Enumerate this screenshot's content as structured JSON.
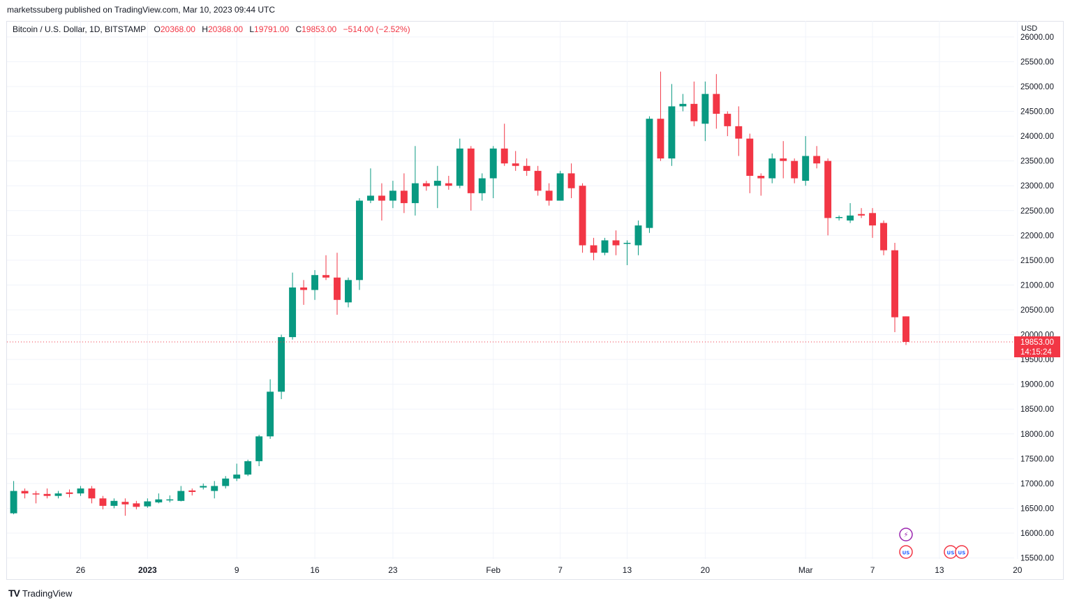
{
  "publisher_line": "marketssuberg published on TradingView.com, Mar 10, 2023 09:44 UTC",
  "legend": {
    "symbol": "Bitcoin / U.S. Dollar, 1D, BITSTAMP",
    "o_label": "O",
    "o_value": "20368.00",
    "h_label": "H",
    "h_value": "20368.00",
    "l_label": "L",
    "l_value": "19791.00",
    "c_label": "C",
    "c_value": "19853.00",
    "change": "−514.00 (−2.52%)"
  },
  "currency": "USD",
  "footer": {
    "logo": "TV",
    "brand": "TradingView"
  },
  "colors": {
    "up": "#089981",
    "down": "#f23645",
    "grid": "#f0f3fa",
    "text": "#131722",
    "price_tag": "#f23645"
  },
  "event_icons": [
    {
      "name": "flash-event-icon",
      "glyph": "⚡",
      "day_index": 80
    },
    {
      "name": "us-flag-event-icon",
      "glyph": "US",
      "day_index": 80
    },
    {
      "name": "us-flag-event-icon",
      "glyph": "US",
      "day_index": 84
    },
    {
      "name": "us-flag-event-icon",
      "glyph": "US",
      "day_index": 85
    }
  ],
  "chart_data": {
    "type": "candlestick",
    "title": "Bitcoin / U.S. Dollar, 1D, BITSTAMP",
    "ylim": [
      15480,
      26040
    ],
    "xlim": [
      -0.6,
      89.7
    ],
    "y_ticks": [
      15500,
      16000,
      16500,
      17000,
      17500,
      18000,
      18500,
      19000,
      19500,
      20000,
      20500,
      21000,
      21500,
      22000,
      22500,
      23000,
      23500,
      24000,
      24500,
      25000,
      25500,
      26000
    ],
    "y_tick_labels": [
      "15500.00",
      "16000.00",
      "16500.00",
      "17000.00",
      "17500.00",
      "18000.00",
      "18500.00",
      "19000.00",
      "19500.00",
      "20000.00",
      "20500.00",
      "21000.00",
      "21500.00",
      "22000.00",
      "22500.00",
      "23000.00",
      "23500.00",
      "24000.00",
      "24500.00",
      "25000.00",
      "25500.00",
      "26000.00"
    ],
    "x_ticks": [
      {
        "day": 6,
        "label": "26",
        "bold": false
      },
      {
        "day": 12,
        "label": "2023",
        "bold": true
      },
      {
        "day": 20,
        "label": "9",
        "bold": false
      },
      {
        "day": 27,
        "label": "16",
        "bold": false
      },
      {
        "day": 34,
        "label": "23",
        "bold": false
      },
      {
        "day": 43,
        "label": "Feb",
        "bold": false
      },
      {
        "day": 49,
        "label": "7",
        "bold": false
      },
      {
        "day": 55,
        "label": "13",
        "bold": false
      },
      {
        "day": 62,
        "label": "20",
        "bold": false
      },
      {
        "day": 71,
        "label": "Mar",
        "bold": false
      },
      {
        "day": 77,
        "label": "7",
        "bold": false
      },
      {
        "day": 83,
        "label": "13",
        "bold": false
      },
      {
        "day": 90,
        "label": "20",
        "bold": false
      }
    ],
    "last_price": 19853,
    "last_price_label": "19853.00",
    "countdown_label": "14:15:24",
    "candles": [
      [
        16400,
        16850,
        17050,
        16380
      ],
      [
        16850,
        16800,
        16900,
        16700
      ],
      [
        16800,
        16780,
        16850,
        16600
      ],
      [
        16790,
        16750,
        16900,
        16700
      ],
      [
        16750,
        16800,
        16850,
        16700
      ],
      [
        16820,
        16790,
        16880,
        16720
      ],
      [
        16800,
        16900,
        16950,
        16750
      ],
      [
        16900,
        16700,
        16950,
        16600
      ],
      [
        16700,
        16550,
        16750,
        16480
      ],
      [
        16550,
        16650,
        16700,
        16500
      ],
      [
        16630,
        16580,
        16700,
        16350
      ],
      [
        16600,
        16530,
        16650,
        16480
      ],
      [
        16540,
        16640,
        16700,
        16510
      ],
      [
        16620,
        16680,
        16800,
        16600
      ],
      [
        16670,
        16680,
        16760,
        16620
      ],
      [
        16650,
        16850,
        16950,
        16640
      ],
      [
        16860,
        16830,
        16900,
        16760
      ],
      [
        16920,
        16950,
        17000,
        16880
      ],
      [
        16850,
        16950,
        17050,
        16700
      ],
      [
        16950,
        17100,
        17150,
        16900
      ],
      [
        17100,
        17180,
        17400,
        17050
      ],
      [
        17180,
        17450,
        17480,
        17150
      ],
      [
        17450,
        17950,
        17980,
        17350
      ],
      [
        17950,
        18850,
        19100,
        17900
      ],
      [
        18850,
        19950,
        20000,
        18700
      ],
      [
        19950,
        20950,
        21250,
        19900
      ],
      [
        20950,
        20900,
        21100,
        20600
      ],
      [
        20900,
        21200,
        21300,
        20700
      ],
      [
        21200,
        21150,
        21600,
        21100
      ],
      [
        21150,
        20700,
        21650,
        20400
      ],
      [
        20650,
        21100,
        21150,
        20550
      ],
      [
        21100,
        22700,
        22750,
        20900
      ],
      [
        22700,
        22800,
        23350,
        22650
      ],
      [
        22800,
        22700,
        23050,
        22300
      ],
      [
        22700,
        22900,
        23100,
        22550
      ],
      [
        22900,
        22650,
        23250,
        22450
      ],
      [
        22650,
        23050,
        23800,
        22400
      ],
      [
        23050,
        22990,
        23100,
        22900
      ],
      [
        23000,
        23100,
        23400,
        22550
      ],
      [
        23050,
        23000,
        23200,
        22920
      ],
      [
        23000,
        23750,
        23950,
        22950
      ],
      [
        23750,
        22850,
        23800,
        22500
      ],
      [
        22850,
        23150,
        23250,
        22700
      ],
      [
        23150,
        23750,
        23800,
        22750
      ],
      [
        23750,
        23450,
        24250,
        23400
      ],
      [
        23450,
        23400,
        23700,
        23300
      ],
      [
        23400,
        23300,
        23550,
        23200
      ],
      [
        23300,
        22900,
        23400,
        22800
      ],
      [
        22900,
        22700,
        23050,
        22600
      ],
      [
        22700,
        23250,
        23300,
        22700
      ],
      [
        23250,
        22950,
        23450,
        22750
      ],
      [
        23000,
        21800,
        23050,
        21650
      ],
      [
        21800,
        21650,
        21950,
        21500
      ],
      [
        21650,
        21900,
        21950,
        21600
      ],
      [
        21900,
        21800,
        22100,
        21600
      ],
      [
        21850,
        21850,
        21900,
        21400
      ],
      [
        21800,
        22200,
        22300,
        21600
      ],
      [
        22150,
        24350,
        24400,
        22050
      ],
      [
        24350,
        23550,
        25300,
        23500
      ],
      [
        23550,
        24600,
        25050,
        23400
      ],
      [
        24600,
        24650,
        24850,
        24500
      ],
      [
        24650,
        24300,
        25100,
        24200
      ],
      [
        24250,
        24850,
        25100,
        23900
      ],
      [
        24850,
        24450,
        25250,
        24150
      ],
      [
        24450,
        24200,
        24500,
        24000
      ],
      [
        24200,
        23950,
        24600,
        23600
      ],
      [
        23950,
        23200,
        24050,
        22850
      ],
      [
        23200,
        23150,
        23250,
        22800
      ],
      [
        23150,
        23550,
        23650,
        23050
      ],
      [
        23550,
        23500,
        23900,
        23150
      ],
      [
        23500,
        23150,
        23550,
        23050
      ],
      [
        23100,
        23600,
        24000,
        23000
      ],
      [
        23600,
        23450,
        23800,
        23350
      ],
      [
        23500,
        22350,
        23550,
        22000
      ],
      [
        22350,
        22370,
        22400,
        22300
      ],
      [
        22300,
        22400,
        22650,
        22250
      ],
      [
        22430,
        22400,
        22550,
        22350
      ],
      [
        22450,
        22200,
        22550,
        21950
      ],
      [
        22250,
        21700,
        22300,
        21600
      ],
      [
        21700,
        20350,
        21850,
        20050
      ],
      [
        20368,
        19853,
        20368,
        19791
      ]
    ]
  }
}
